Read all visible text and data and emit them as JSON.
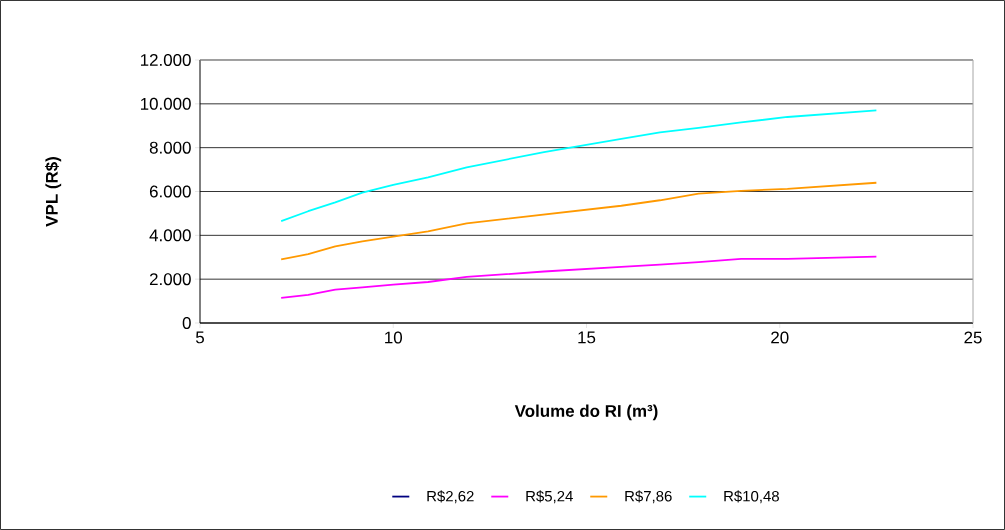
{
  "chart_data": {
    "type": "line",
    "xlabel": "Volume do RI (m³)",
    "ylabel": "VPL (R$)",
    "x": [
      7.1,
      7.8,
      8.5,
      9.2,
      10.0,
      10.9,
      11.9,
      13.9,
      15.9,
      16.9,
      17.9,
      19.0,
      20.2,
      22.5
    ],
    "series": [
      {
        "name": "R$2,62",
        "color": "#000080",
        "values": [
          null,
          null,
          null,
          null,
          null,
          null,
          null,
          null,
          null,
          null,
          null,
          null,
          null,
          null
        ]
      },
      {
        "name": "R$5,24",
        "color": "#ff00ff",
        "values": [
          1150,
          1280,
          1520,
          1630,
          1750,
          1870,
          2100,
          2350,
          2560,
          2660,
          2780,
          2930,
          2930,
          3030
        ]
      },
      {
        "name": "R$7,86",
        "color": "#ff9900",
        "values": [
          2900,
          3140,
          3500,
          3720,
          3940,
          4180,
          4550,
          4950,
          5350,
          5600,
          5900,
          6030,
          6120,
          6400
        ]
      },
      {
        "name": "R$10,48",
        "color": "#00ffff",
        "values": [
          4650,
          5100,
          5500,
          5950,
          6300,
          6650,
          7100,
          7800,
          8400,
          8700,
          8900,
          9150,
          9400,
          9700
        ]
      }
    ],
    "xlim": [
      5,
      25
    ],
    "xticks": [
      5,
      10,
      15,
      20,
      25
    ],
    "ylim": [
      0,
      12000
    ],
    "yticks": [
      {
        "value": 0,
        "label": "0"
      },
      {
        "value": 2000,
        "label": "2.000"
      },
      {
        "value": 4000,
        "label": "4.000"
      },
      {
        "value": 6000,
        "label": "6.000"
      },
      {
        "value": 8000,
        "label": "8.000"
      },
      {
        "value": 10000,
        "label": "10.000"
      },
      {
        "value": 12000,
        "label": "12.000"
      }
    ],
    "grid": "y",
    "legend": "bottom",
    "marker": "none",
    "line_style": "solid"
  }
}
